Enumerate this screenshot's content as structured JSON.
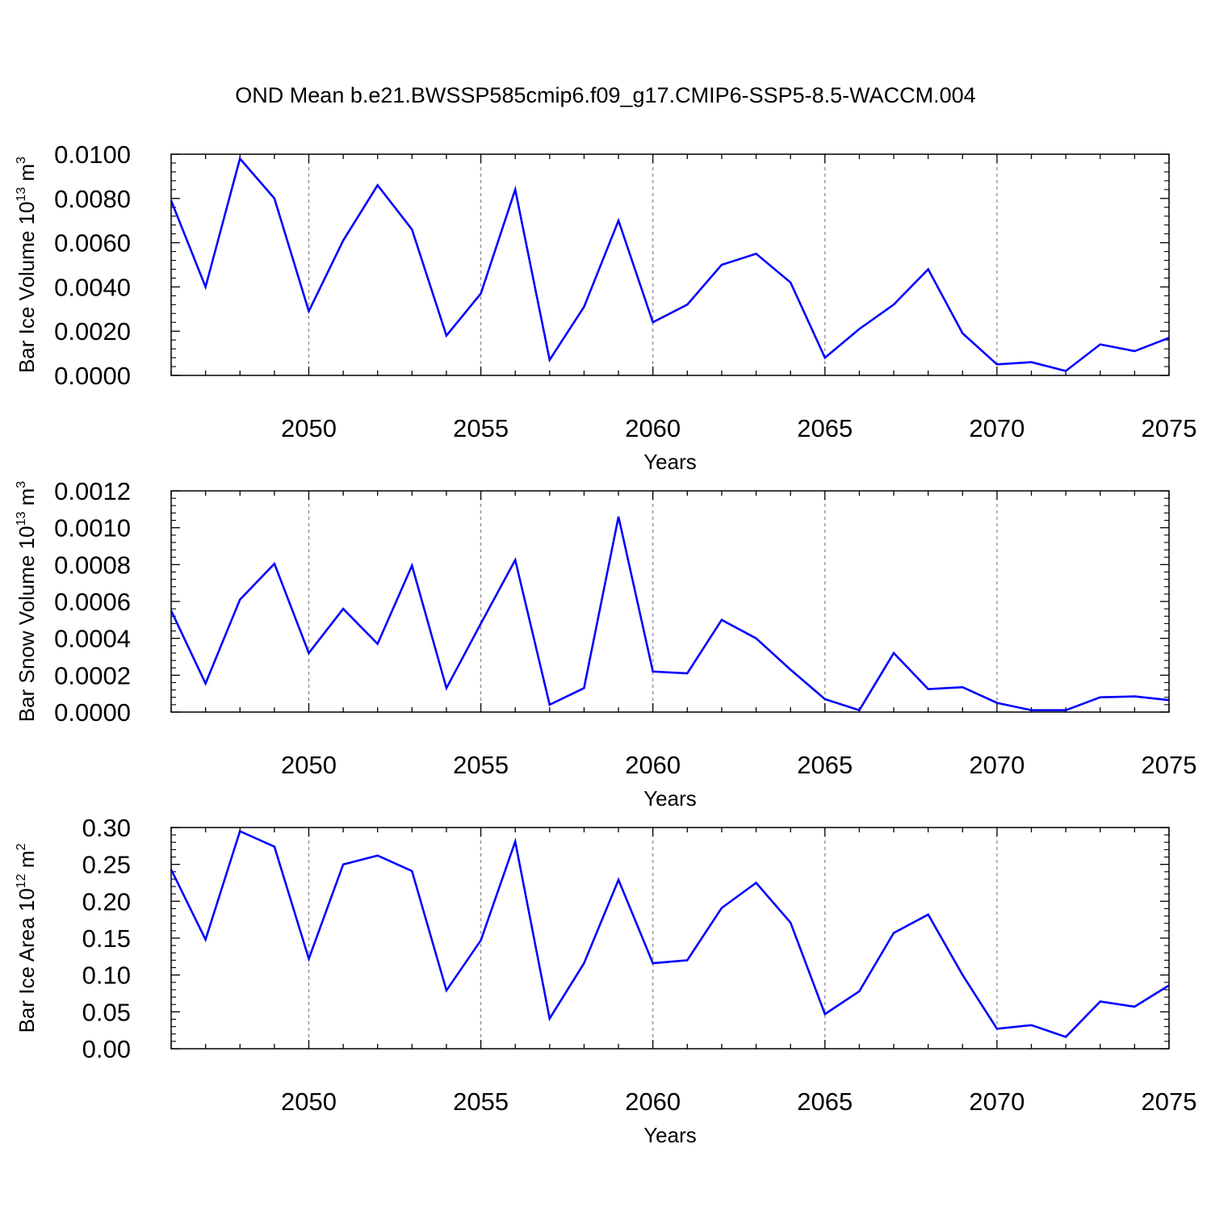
{
  "title": "OND Mean b.e21.BWSSP585cmip6.f09_g17.CMIP6-SSP5-8.5-WACCM.004",
  "line_color": "#0000ff",
  "chart_data": [
    {
      "type": "line",
      "id": "ice-volume",
      "ylabel": {
        "base": "Bar Ice Volume 10",
        "exp": "13",
        "unit": " m",
        "unit_exp": "3"
      },
      "xlabel": "Years",
      "xlim": [
        2046,
        2075
      ],
      "ylim": [
        0,
        0.01
      ],
      "yticks": [
        0,
        0.002,
        0.004,
        0.006,
        0.008,
        0.01
      ],
      "ytick_labels": [
        "0.0000",
        "0.0020",
        "0.0040",
        "0.0060",
        "0.0080",
        "0.0100"
      ],
      "xticks": [
        2050,
        2055,
        2060,
        2065,
        2070,
        2075
      ],
      "xtick_labels": [
        "2050",
        "2055",
        "2060",
        "2065",
        "2070",
        "2075"
      ],
      "grid": "vertical dashed at major x ticks",
      "series": [
        {
          "name": "Bar Ice Volume",
          "x": [
            2046,
            2047,
            2048,
            2049,
            2050,
            2051,
            2052,
            2053,
            2054,
            2055,
            2056,
            2057,
            2058,
            2059,
            2060,
            2061,
            2062,
            2063,
            2064,
            2065,
            2066,
            2067,
            2068,
            2069,
            2070,
            2071,
            2072,
            2073,
            2074,
            2075
          ],
          "values": [
            0.0079,
            0.004,
            0.0098,
            0.008,
            0.0029,
            0.0061,
            0.0086,
            0.0066,
            0.0018,
            0.0037,
            0.0084,
            0.0007,
            0.0031,
            0.007,
            0.0024,
            0.0032,
            0.005,
            0.0055,
            0.0042,
            0.0008,
            0.0021,
            0.0032,
            0.0048,
            0.0019,
            0.0005,
            0.0006,
            0.0002,
            0.0014,
            0.0011,
            0.0017
          ]
        }
      ]
    },
    {
      "type": "line",
      "id": "snow-volume",
      "ylabel": {
        "base": "Bar Snow Volume 10",
        "exp": "13",
        "unit": " m",
        "unit_exp": "3"
      },
      "xlabel": "Years",
      "xlim": [
        2046,
        2075
      ],
      "ylim": [
        0,
        0.0012
      ],
      "yticks": [
        0,
        0.0002,
        0.0004,
        0.0006,
        0.0008,
        0.001,
        0.0012
      ],
      "ytick_labels": [
        "0.0000",
        "0.0002",
        "0.0004",
        "0.0006",
        "0.0008",
        "0.0010",
        "0.0012"
      ],
      "xticks": [
        2050,
        2055,
        2060,
        2065,
        2070,
        2075
      ],
      "xtick_labels": [
        "2050",
        "2055",
        "2060",
        "2065",
        "2070",
        "2075"
      ],
      "grid": "vertical dashed at major x ticks",
      "series": [
        {
          "name": "Bar Snow Volume",
          "x": [
            2046,
            2047,
            2048,
            2049,
            2050,
            2051,
            2052,
            2053,
            2054,
            2055,
            2056,
            2057,
            2058,
            2059,
            2060,
            2061,
            2062,
            2063,
            2064,
            2065,
            2066,
            2067,
            2068,
            2069,
            2070,
            2071,
            2072,
            2073,
            2074,
            2075
          ],
          "values": [
            0.00055,
            0.000155,
            0.00061,
            0.000805,
            0.00032,
            0.00056,
            0.00037,
            0.000795,
            0.00013,
            0.00048,
            0.000825,
            4e-05,
            0.00013,
            0.00106,
            0.00022,
            0.00021,
            0.0005,
            0.0004,
            0.00023,
            7e-05,
            1e-05,
            0.00032,
            0.000125,
            0.000135,
            5e-05,
            1e-05,
            1e-05,
            8e-05,
            8.5e-05,
            6.5e-05
          ]
        }
      ]
    },
    {
      "type": "line",
      "id": "ice-area",
      "ylabel": {
        "base": "Bar Ice Area 10",
        "exp": "12",
        "unit": " m",
        "unit_exp": "2"
      },
      "xlabel": "Years",
      "xlim": [
        2046,
        2075
      ],
      "ylim": [
        0,
        0.3
      ],
      "yticks": [
        0,
        0.05,
        0.1,
        0.15,
        0.2,
        0.25,
        0.3
      ],
      "ytick_labels": [
        "0.00",
        "0.05",
        "0.10",
        "0.15",
        "0.20",
        "0.25",
        "0.30"
      ],
      "xticks": [
        2050,
        2055,
        2060,
        2065,
        2070,
        2075
      ],
      "xtick_labels": [
        "2050",
        "2055",
        "2060",
        "2065",
        "2070",
        "2075"
      ],
      "grid": "vertical dashed at major x ticks",
      "series": [
        {
          "name": "Bar Ice Area",
          "x": [
            2046,
            2047,
            2048,
            2049,
            2050,
            2051,
            2052,
            2053,
            2054,
            2055,
            2056,
            2057,
            2058,
            2059,
            2060,
            2061,
            2062,
            2063,
            2064,
            2065,
            2066,
            2067,
            2068,
            2069,
            2070,
            2071,
            2072,
            2073,
            2074,
            2075
          ],
          "values": [
            0.243,
            0.148,
            0.295,
            0.274,
            0.122,
            0.25,
            0.262,
            0.241,
            0.079,
            0.147,
            0.281,
            0.041,
            0.116,
            0.229,
            0.116,
            0.12,
            0.191,
            0.225,
            0.171,
            0.047,
            0.078,
            0.157,
            0.182,
            0.1,
            0.027,
            0.032,
            0.016,
            0.064,
            0.057,
            0.086
          ]
        }
      ]
    }
  ]
}
